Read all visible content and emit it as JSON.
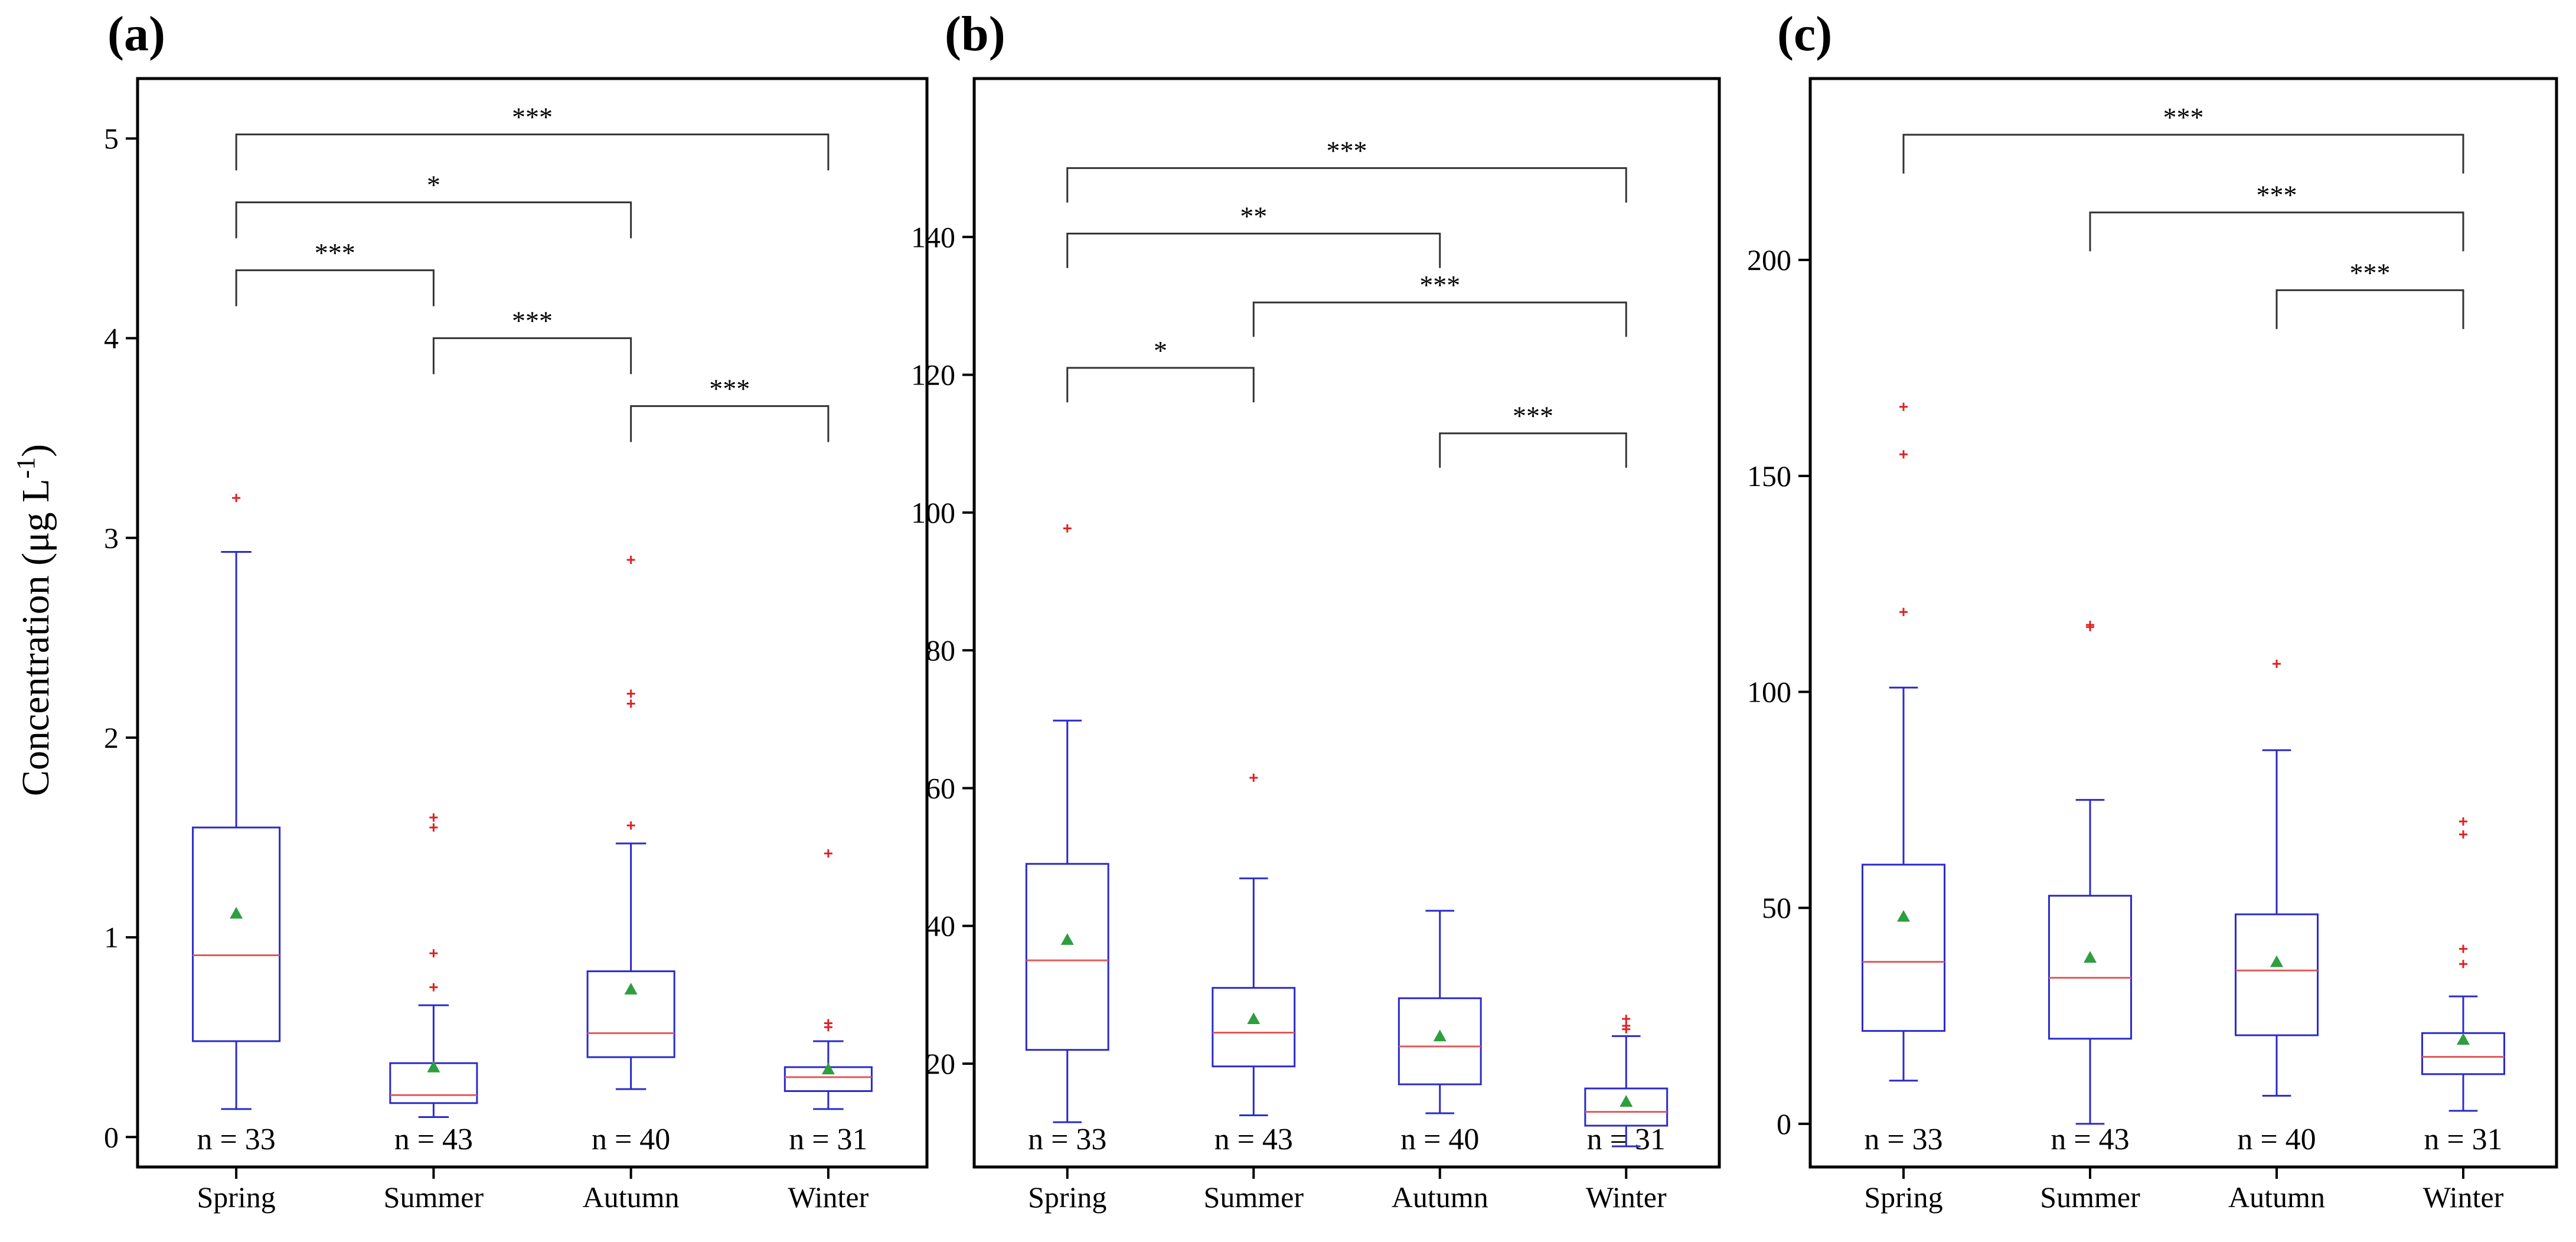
{
  "figure": {
    "ylabel_main": "Concentration (μg L",
    "ylabel_sup": "-1",
    "ylabel_close": ")"
  },
  "chart_data": [
    {
      "type": "box",
      "panel": "(a)",
      "categories": [
        "Spring",
        "Summer",
        "Autumn",
        "Winter"
      ],
      "n_labels": [
        "n = 33",
        "n = 43",
        "n = 40",
        "n = 31"
      ],
      "ylim": [
        -0.15,
        5.3
      ],
      "yticks": [
        0,
        1,
        2,
        3,
        4,
        5
      ],
      "boxes": [
        {
          "whisker_low": 0.14,
          "q1": 0.48,
          "median": 0.91,
          "q3": 1.55,
          "whisker_high": 2.93,
          "mean": 1.12,
          "outliers": [
            3.2
          ]
        },
        {
          "whisker_low": 0.1,
          "q1": 0.17,
          "median": 0.21,
          "q3": 0.37,
          "whisker_high": 0.66,
          "mean": 0.35,
          "outliers": [
            0.75,
            0.92,
            1.55,
            1.6
          ]
        },
        {
          "whisker_low": 0.24,
          "q1": 0.4,
          "median": 0.52,
          "q3": 0.83,
          "whisker_high": 1.47,
          "mean": 0.74,
          "outliers": [
            1.56,
            2.17,
            2.22,
            2.89
          ]
        },
        {
          "whisker_low": 0.14,
          "q1": 0.23,
          "median": 0.3,
          "q3": 0.35,
          "whisker_high": 0.48,
          "mean": 0.34,
          "outliers": [
            0.55,
            0.57,
            1.42
          ]
        }
      ],
      "brackets": [
        {
          "from": 0,
          "to": 3,
          "y": 5.02,
          "drop_to": 4.84,
          "label": "***"
        },
        {
          "from": 0,
          "to": 2,
          "y": 4.68,
          "drop_to": 4.5,
          "label": "*"
        },
        {
          "from": 0,
          "to": 1,
          "y": 4.34,
          "drop_to": 4.16,
          "label": "***"
        },
        {
          "from": 1,
          "to": 2,
          "y": 4.0,
          "drop_to": 3.82,
          "label": "***"
        },
        {
          "from": 2,
          "to": 3,
          "y": 3.66,
          "drop_to": 3.48,
          "label": "***"
        }
      ]
    },
    {
      "type": "box",
      "panel": "(b)",
      "categories": [
        "Spring",
        "Summer",
        "Autumn",
        "Winter"
      ],
      "n_labels": [
        "n = 33",
        "n = 43",
        "n = 40",
        "n = 31"
      ],
      "ylim": [
        5,
        163
      ],
      "yticks": [
        20,
        40,
        60,
        80,
        100,
        120,
        140
      ],
      "boxes": [
        {
          "whisker_low": 11.5,
          "q1": 22,
          "median": 35,
          "q3": 49,
          "whisker_high": 69.8,
          "mean": 38,
          "outliers": [
            97.7
          ]
        },
        {
          "whisker_low": 12.5,
          "q1": 19.6,
          "median": 24.5,
          "q3": 31,
          "whisker_high": 46.9,
          "mean": 26.5,
          "outliers": [
            61.5
          ]
        },
        {
          "whisker_low": 12.8,
          "q1": 17,
          "median": 22.5,
          "q3": 29.5,
          "whisker_high": 42.2,
          "mean": 24,
          "outliers": []
        },
        {
          "whisker_low": 8,
          "q1": 11,
          "median": 13,
          "q3": 16.4,
          "whisker_high": 24,
          "mean": 14.5,
          "outliers": [
            25,
            25.5,
            26.5
          ]
        }
      ],
      "brackets": [
        {
          "from": 0,
          "to": 3,
          "y": 150,
          "drop_to": 145,
          "label": "***"
        },
        {
          "from": 0,
          "to": 2,
          "y": 140.5,
          "drop_to": 135.5,
          "label": "**"
        },
        {
          "from": 1,
          "to": 3,
          "y": 130.5,
          "drop_to": 125.5,
          "label": "***"
        },
        {
          "from": 0,
          "to": 1,
          "y": 121,
          "drop_to": 116,
          "label": "*"
        },
        {
          "from": 2,
          "to": 3,
          "y": 111.5,
          "drop_to": 106.5,
          "label": "***"
        }
      ]
    },
    {
      "type": "box",
      "panel": "(c)",
      "categories": [
        "Spring",
        "Summer",
        "Autumn",
        "Winter"
      ],
      "n_labels": [
        "n = 33",
        "n = 43",
        "n = 40",
        "n = 31"
      ],
      "ylim": [
        -10,
        242
      ],
      "yticks": [
        0,
        50,
        100,
        150,
        200
      ],
      "boxes": [
        {
          "whisker_low": 10,
          "q1": 21.5,
          "median": 37.5,
          "q3": 60,
          "whisker_high": 101,
          "mean": 48,
          "outliers": [
            118.5,
            155,
            166
          ]
        },
        {
          "whisker_low": 0,
          "q1": 19.7,
          "median": 33.8,
          "q3": 52.8,
          "whisker_high": 75,
          "mean": 38.5,
          "outliers": [
            115,
            115.5
          ]
        },
        {
          "whisker_low": 6.5,
          "q1": 20.5,
          "median": 35.5,
          "q3": 48.5,
          "whisker_high": 86.5,
          "mean": 37.5,
          "outliers": [
            106.5
          ]
        },
        {
          "whisker_low": 3,
          "q1": 11.5,
          "median": 15.5,
          "q3": 21,
          "whisker_high": 29.5,
          "mean": 19.5,
          "outliers": [
            37,
            40.5,
            67,
            70
          ]
        }
      ],
      "brackets": [
        {
          "from": 0,
          "to": 3,
          "y": 229,
          "drop_to": 220,
          "label": "***"
        },
        {
          "from": 1,
          "to": 3,
          "y": 211,
          "drop_to": 202,
          "label": "***"
        },
        {
          "from": 2,
          "to": 3,
          "y": 193,
          "drop_to": 184,
          "label": "***"
        }
      ]
    }
  ]
}
